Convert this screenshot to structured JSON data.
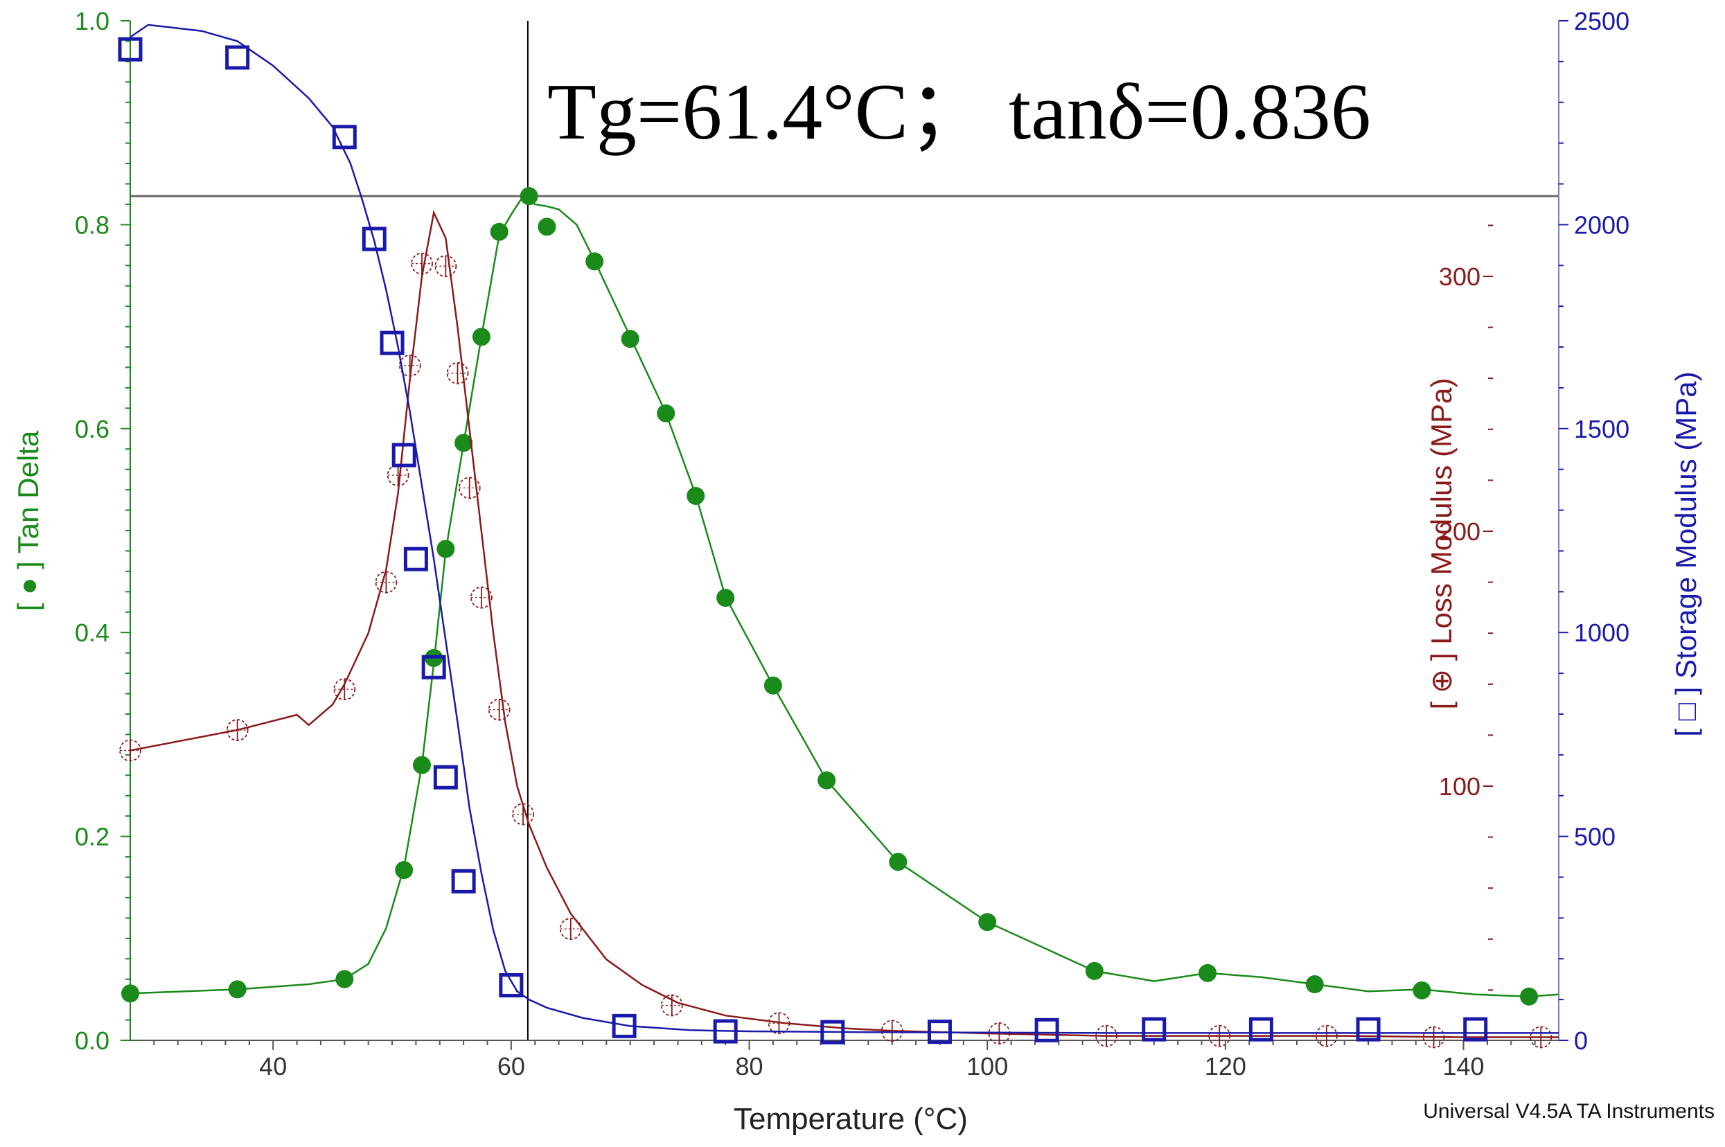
{
  "chart_data": {
    "type": "line",
    "xlabel": "Temperature (°C)",
    "xlim": [
      28,
      148
    ],
    "x_ticks": [
      "40",
      "60",
      "80",
      "100",
      "120",
      "140"
    ],
    "annotation": "Tg=61.4°C；  tanδ=0.836",
    "footer": "Universal V4.5A TA Instruments",
    "crosshair": {
      "x": 61.4,
      "y": 0.828
    },
    "axes": {
      "left": {
        "label": "[ ● ] Tan Delta",
        "range": [
          0,
          1.0
        ],
        "ticks": [
          "0.0",
          "0.2",
          "0.4",
          "0.6",
          "0.8",
          "1.0"
        ],
        "color": "#1a8a1a"
      },
      "loss": {
        "label": "[ ⊕ ] Loss Modulus (MPa)",
        "range": [
          0,
          100
        ],
        "ticks": [
          "100",
          "200",
          "300"
        ],
        "color": "#8b1a1a"
      },
      "storage": {
        "label": "[ □ ] Storage Modulus (MPa)",
        "range": [
          0,
          2500
        ],
        "ticks": [
          "0",
          "500",
          "1000",
          "1500",
          "2000",
          "2500"
        ],
        "color": "#1a1aaa"
      }
    },
    "series": [
      {
        "name": "Tan Delta",
        "axis": "left",
        "color": "#1a8a1a",
        "marker": "filled-circle",
        "curve": [
          [
            28,
            0.046
          ],
          [
            37,
            0.05
          ],
          [
            43,
            0.055
          ],
          [
            46,
            0.06
          ],
          [
            48,
            0.075
          ],
          [
            49.5,
            0.11
          ],
          [
            51,
            0.17
          ],
          [
            52.5,
            0.27
          ],
          [
            53.5,
            0.37
          ],
          [
            54.5,
            0.48
          ],
          [
            56,
            0.585
          ],
          [
            57.5,
            0.69
          ],
          [
            59,
            0.79
          ],
          [
            60,
            0.81
          ],
          [
            61,
            0.828
          ],
          [
            62,
            0.82
          ],
          [
            63,
            0.818
          ],
          [
            64,
            0.815
          ],
          [
            65.5,
            0.8
          ],
          [
            67,
            0.765
          ],
          [
            70,
            0.69
          ],
          [
            73,
            0.615
          ],
          [
            75.5,
            0.535
          ],
          [
            78,
            0.435
          ],
          [
            82,
            0.348
          ],
          [
            86.5,
            0.255
          ],
          [
            92.5,
            0.175
          ],
          [
            100,
            0.116
          ],
          [
            109,
            0.068
          ],
          [
            114,
            0.058
          ],
          [
            118.5,
            0.066
          ],
          [
            123,
            0.062
          ],
          [
            127.5,
            0.055
          ],
          [
            132,
            0.048
          ],
          [
            136.5,
            0.05
          ],
          [
            141,
            0.045
          ],
          [
            145.5,
            0.043
          ],
          [
            148,
            0.045
          ]
        ],
        "markers": [
          [
            28,
            0.046
          ],
          [
            37,
            0.05
          ],
          [
            46,
            0.06
          ],
          [
            51,
            0.167
          ],
          [
            52.5,
            0.27
          ],
          [
            53.5,
            0.375
          ],
          [
            54.5,
            0.482
          ],
          [
            56,
            0.586
          ],
          [
            57.5,
            0.69
          ],
          [
            59,
            0.793
          ],
          [
            61.5,
            0.828
          ],
          [
            63,
            0.798
          ],
          [
            67,
            0.764
          ],
          [
            70,
            0.688
          ],
          [
            73,
            0.615
          ],
          [
            75.5,
            0.534
          ],
          [
            78,
            0.434
          ],
          [
            82,
            0.348
          ],
          [
            86.5,
            0.255
          ],
          [
            92.5,
            0.175
          ],
          [
            100,
            0.116
          ],
          [
            109,
            0.068
          ],
          [
            118.5,
            0.066
          ],
          [
            127.5,
            0.055
          ],
          [
            136.5,
            0.049
          ],
          [
            145.5,
            0.043
          ]
        ]
      },
      {
        "name": "Loss Modulus",
        "axis": "loss",
        "color": "#8b1a1a",
        "marker": "crossed-circle",
        "curve": [
          [
            28,
            114
          ],
          [
            37,
            122
          ],
          [
            42,
            128
          ],
          [
            43,
            124
          ],
          [
            45,
            132
          ],
          [
            46,
            140
          ],
          [
            48,
            160
          ],
          [
            49.5,
            185
          ],
          [
            50.5,
            215
          ],
          [
            51.5,
            260
          ],
          [
            52.5,
            300
          ],
          [
            53.5,
            325
          ],
          [
            54.5,
            315
          ],
          [
            55.5,
            280
          ],
          [
            56.5,
            240
          ],
          [
            57.5,
            200
          ],
          [
            58.5,
            160
          ],
          [
            59.5,
            125
          ],
          [
            60.5,
            100
          ],
          [
            61.5,
            85
          ],
          [
            63,
            68
          ],
          [
            65,
            50
          ],
          [
            68,
            32
          ],
          [
            71,
            22
          ],
          [
            74,
            15
          ],
          [
            78,
            10
          ],
          [
            83,
            7
          ],
          [
            88,
            5
          ],
          [
            92,
            4
          ],
          [
            100,
            3
          ],
          [
            110,
            2
          ],
          [
            120,
            2
          ],
          [
            130,
            2
          ],
          [
            140,
            1.5
          ],
          [
            148,
            1.5
          ]
        ],
        "markers": [
          [
            28,
            114
          ],
          [
            37,
            122
          ],
          [
            46,
            138
          ],
          [
            49.5,
            180
          ],
          [
            50.5,
            222
          ],
          [
            51.5,
            265
          ],
          [
            52.5,
            305
          ],
          [
            54.5,
            304
          ],
          [
            55.5,
            262
          ],
          [
            56.5,
            217
          ],
          [
            57.5,
            174
          ],
          [
            59,
            130
          ],
          [
            61,
            89
          ],
          [
            65,
            44
          ],
          [
            73.5,
            14
          ],
          [
            82.5,
            7
          ],
          [
            92,
            4
          ],
          [
            101,
            3
          ],
          [
            110,
            2
          ],
          [
            119.5,
            2
          ],
          [
            128.5,
            2
          ],
          [
            137.5,
            1.5
          ],
          [
            146.5,
            1.5
          ]
        ]
      },
      {
        "name": "Storage Modulus",
        "axis": "storage",
        "color": "#1a1aaa",
        "marker": "open-square",
        "curve": [
          [
            28,
            2460
          ],
          [
            29.5,
            2490
          ],
          [
            31,
            2485
          ],
          [
            34,
            2475
          ],
          [
            37,
            2450
          ],
          [
            40,
            2390
          ],
          [
            43,
            2310
          ],
          [
            45,
            2240
          ],
          [
            46.5,
            2150
          ],
          [
            47.5,
            2060
          ],
          [
            48.5,
            1960
          ],
          [
            49.5,
            1840
          ],
          [
            50.5,
            1700
          ],
          [
            51.5,
            1540
          ],
          [
            52.5,
            1360
          ],
          [
            53.5,
            1180
          ],
          [
            54.5,
            980
          ],
          [
            55.5,
            780
          ],
          [
            56.5,
            570
          ],
          [
            57.5,
            410
          ],
          [
            58.5,
            270
          ],
          [
            59.5,
            170
          ],
          [
            60.5,
            120
          ],
          [
            61.5,
            100
          ],
          [
            63,
            80
          ],
          [
            66,
            55
          ],
          [
            70,
            35
          ],
          [
            75,
            25
          ],
          [
            80,
            22
          ],
          [
            90,
            20
          ],
          [
            100,
            19
          ],
          [
            110,
            18
          ],
          [
            120,
            18
          ],
          [
            130,
            18
          ],
          [
            140,
            18
          ],
          [
            148,
            18
          ]
        ],
        "markers": [
          [
            28,
            2430
          ],
          [
            37,
            2410
          ],
          [
            46,
            2215
          ],
          [
            48.5,
            1965
          ],
          [
            50,
            1710
          ],
          [
            51,
            1435
          ],
          [
            52,
            1180
          ],
          [
            53.5,
            915
          ],
          [
            54.5,
            645
          ],
          [
            56,
            390
          ],
          [
            60,
            135
          ],
          [
            69.5,
            35
          ],
          [
            78,
            22
          ],
          [
            87,
            20
          ],
          [
            96,
            21
          ],
          [
            105,
            25
          ],
          [
            114,
            27
          ],
          [
            123,
            27
          ],
          [
            132,
            27
          ],
          [
            141,
            27
          ]
        ]
      }
    ]
  }
}
